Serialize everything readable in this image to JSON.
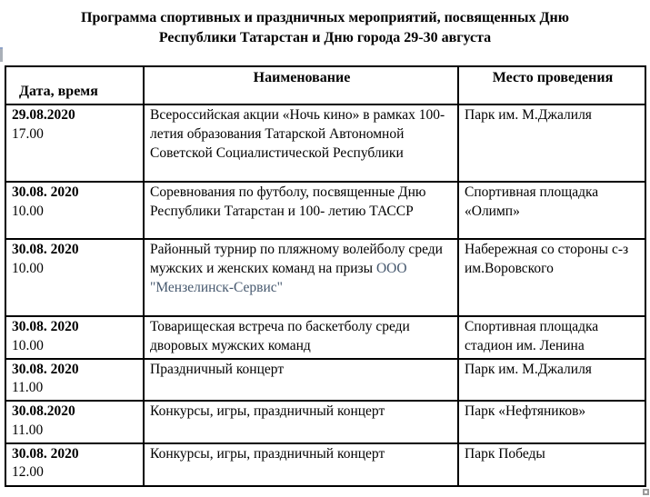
{
  "title": {
    "line1": "Программа спортивных и праздничных мероприятий, посвященных Дню",
    "line2": "Республики Татарстан и Дню города 29-30 августа"
  },
  "table": {
    "border_color": "#000000",
    "highlight_color": "#46586e",
    "headers": {
      "date": "Дата, время",
      "name": "Наименование",
      "place": "Место проведения"
    },
    "rows": [
      {
        "date": "29.08.2020",
        "time": "17.00",
        "name_segments": [
          {
            "text": "Всероссийская акции «Ночь кино» в рамках 100-летия образования Татарской Автономной Советской Социалистической Республики"
          }
        ],
        "place": "Парк им. М.Джалиля"
      },
      {
        "date": "30.08. 2020",
        "time": "10.00",
        "name_segments": [
          {
            "text": "Соревнования по футболу, посвященные Дню Республики Татарстан и 100- летию ТАССР"
          }
        ],
        "place": "Спортивная площадка «Олимп»"
      },
      {
        "date": "30.08. 2020",
        "time": "10.00",
        "name_segments": [
          {
            "text": "Районный турнир по пляжному волейболу среди мужских и женских команд на призы "
          },
          {
            "text": "ООО \"Мензелинск-Сервис\"",
            "color": "#46586e"
          }
        ],
        "place": "Набережная со стороны с-з им.Воровского"
      },
      {
        "date": "30.08. 2020",
        "time": "10.00",
        "name_segments": [
          {
            "text": "Товарищеская встреча по баскетболу среди дворовых мужских команд"
          }
        ],
        "place": "Спортивная площадка стадион им. Ленина"
      },
      {
        "date": "30.08. 2020",
        "time": "11.00",
        "name_segments": [
          {
            "text": "Праздничный концерт"
          }
        ],
        "place": "Парк им. М.Джалиля"
      },
      {
        "date": "30.08.2020",
        "time": "11.00",
        "name_segments": [
          {
            "text": "Конкурсы, игры, праздничный концерт"
          }
        ],
        "place": "Парк «Нефтяников»"
      },
      {
        "date": "30.08. 2020",
        "time": "12.00",
        "name_segments": [
          {
            "text": "Конкурсы, игры, праздничный концерт"
          }
        ],
        "place": "Парк Победы"
      }
    ]
  }
}
